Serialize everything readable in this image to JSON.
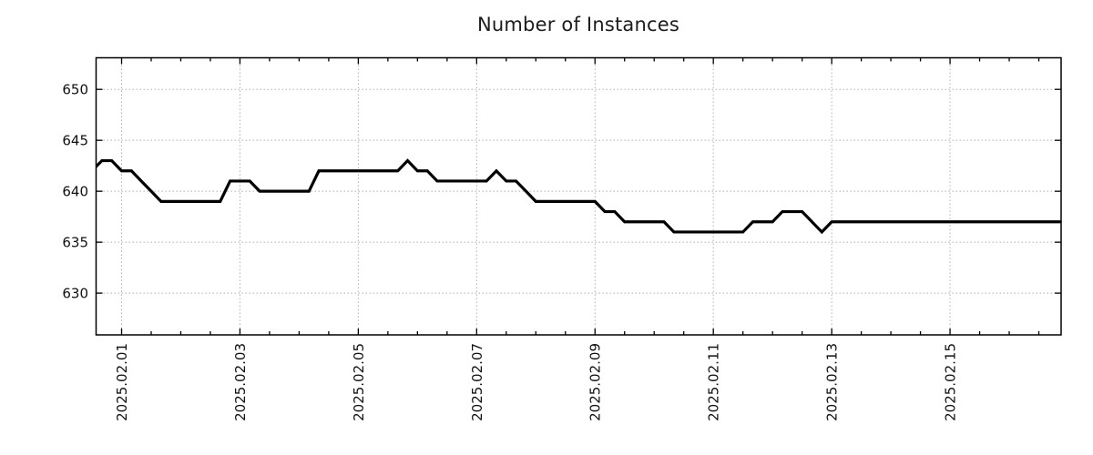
{
  "chart_data": {
    "type": "line",
    "title": "Number of Instances",
    "legend": "none",
    "grid": "dotted",
    "colors": {
      "line": "#000000",
      "frame": "#000000",
      "grid": "#b0b0b0",
      "text": "#111111",
      "background": "#ffffff"
    },
    "x_axis": {
      "label": "",
      "tick_labels": [
        "2025.02.01",
        "2025.02.03",
        "2025.02.05",
        "2025.02.07",
        "2025.02.09",
        "2025.02.11",
        "2025.02.13",
        "2025.02.15"
      ],
      "tick_day_offsets": [
        0,
        2,
        4,
        6,
        8,
        10,
        12,
        14
      ],
      "minor_tick_interval_days": 0.5,
      "xlim_days": [
        -0.431,
        15.877
      ]
    },
    "y_axis": {
      "label": "",
      "ticks": [
        630,
        635,
        640,
        645,
        650
      ],
      "ylim": [
        625.9,
        653.1
      ]
    },
    "series": [
      {
        "name": "instances",
        "x_start_day": -0.5,
        "x_step_days": 0.1666667,
        "start_time": "2025.01.31 12:00",
        "sample_interval_hours": 4,
        "values": [
          642,
          643,
          643,
          642,
          642,
          641,
          640,
          639,
          639,
          639,
          639,
          639,
          639,
          639,
          641,
          641,
          641,
          640,
          640,
          640,
          640,
          640,
          640,
          642,
          642,
          642,
          642,
          642,
          642,
          642,
          642,
          642,
          643,
          642,
          642,
          641,
          641,
          641,
          641,
          641,
          641,
          642,
          641,
          641,
          640,
          639,
          639,
          639,
          639,
          639,
          639,
          639,
          638,
          638,
          637,
          637,
          637,
          637,
          637,
          636,
          636,
          636,
          636,
          636,
          636,
          636,
          636,
          637,
          637,
          637,
          638,
          638,
          638,
          637,
          636,
          637,
          637,
          637,
          637,
          637,
          637,
          637,
          637,
          637,
          637,
          637,
          637,
          637,
          637,
          637,
          637,
          637,
          637,
          637,
          637,
          637,
          637,
          637,
          637,
          637
        ]
      }
    ]
  }
}
